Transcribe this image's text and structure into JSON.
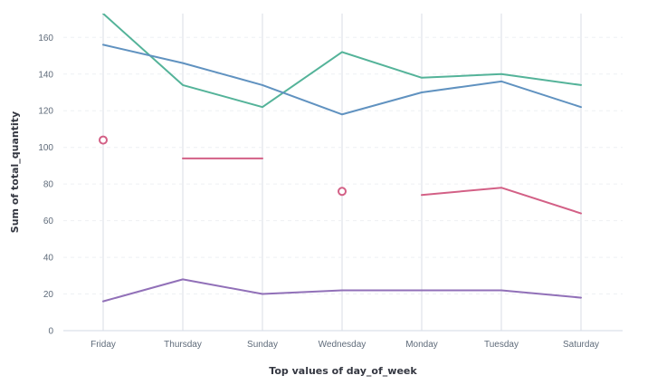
{
  "chart_data": {
    "type": "line",
    "xlabel": "Top values of day_of_week",
    "ylabel": "Sum of total_quantity",
    "categories": [
      "Friday",
      "Thursday",
      "Sunday",
      "Wednesday",
      "Monday",
      "Tuesday",
      "Saturday"
    ],
    "y_ticks": [
      0,
      20,
      40,
      60,
      80,
      100,
      120,
      140,
      160
    ],
    "ylim": [
      0,
      173
    ],
    "grid": "horizontal dashed, vertical solid at categories",
    "legend": "none",
    "series": [
      {
        "color": "#54B399",
        "values": [
          173,
          134,
          122,
          152,
          138,
          140,
          134
        ]
      },
      {
        "color": "#6092C0",
        "values": [
          156,
          146,
          134,
          118,
          130,
          136,
          122
        ]
      },
      {
        "color": "#D36086",
        "values": [
          104,
          94,
          94,
          76,
          74,
          78,
          64
        ],
        "gaps_after": [
          0,
          2,
          3
        ]
      },
      {
        "color": "#9170B8",
        "values": [
          16,
          28,
          20,
          22,
          22,
          22,
          18
        ]
      }
    ]
  }
}
